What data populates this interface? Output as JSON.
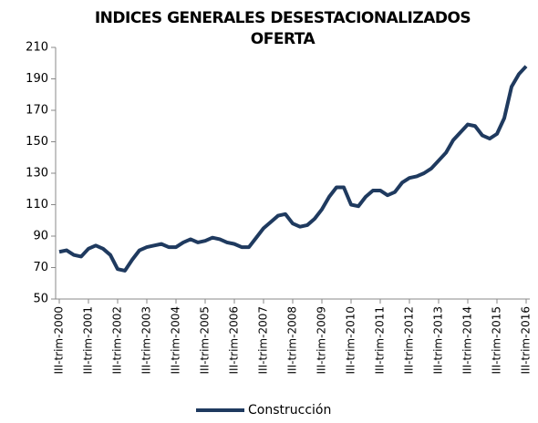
{
  "chart_data": {
    "type": "line",
    "title": "INDICES GENERALES DESESTACIONALIZADOS",
    "subtitle": "OFERTA",
    "categories": [
      "III-trim-2000",
      null,
      null,
      null,
      "III-trim-2001",
      null,
      null,
      null,
      "III-trim-2002",
      null,
      null,
      null,
      "III-trim-2003",
      null,
      null,
      null,
      "III-trim-2004",
      null,
      null,
      null,
      "III-trim-2005",
      null,
      null,
      null,
      "III-trim-2006",
      null,
      null,
      null,
      "III-trim-2007",
      null,
      null,
      null,
      "III-trim-2008",
      null,
      null,
      null,
      "III-trim-2009",
      null,
      null,
      null,
      "III-trim-2010",
      null,
      null,
      null,
      "III-trim-2011",
      null,
      null,
      null,
      "III-trim-2012",
      null,
      null,
      null,
      "III-trim-2013",
      null,
      null,
      null,
      "III-trim-2014",
      null,
      null,
      null,
      "III-trim-2015",
      null,
      null,
      null,
      "III-trim-2016"
    ],
    "series": [
      {
        "name": "Construcción",
        "color": "#1f3a5f",
        "values": [
          80,
          81,
          78,
          77,
          82,
          84,
          82,
          78,
          69,
          68,
          75,
          81,
          83,
          84,
          85,
          83,
          83,
          86,
          88,
          86,
          87,
          89,
          88,
          86,
          85,
          83,
          83,
          89,
          95,
          99,
          103,
          104,
          98,
          96,
          97,
          101,
          107,
          115,
          121,
          121,
          110,
          109,
          115,
          119,
          119,
          116,
          118,
          124,
          127,
          128,
          130,
          133,
          138,
          143,
          151,
          156,
          161,
          160,
          154,
          152,
          155,
          165,
          185,
          193,
          198
        ]
      }
    ],
    "ylim": [
      50,
      210
    ],
    "yticks": [
      50,
      70,
      90,
      110,
      130,
      150,
      170,
      190,
      210
    ],
    "legend": "bottom"
  }
}
